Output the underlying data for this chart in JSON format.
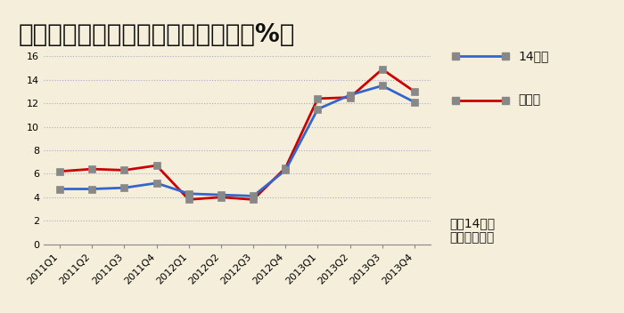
{
  "title": "住宅価格の上昇率　（前年同期比、%）",
  "background_color": "#f5eedb",
  "plot_bg_color": "#f5eedb",
  "x_labels": [
    "2011Q1",
    "2011Q2",
    "2011Q3",
    "2011Q4",
    "2012Q1",
    "2012Q2",
    "2012Q3",
    "2012Q4",
    "2013Q1",
    "2013Q2",
    "2013Q3",
    "2013Q4"
  ],
  "series_14toshi": [
    4.7,
    4.7,
    4.8,
    5.2,
    4.3,
    4.2,
    4.1,
    6.3,
    11.5,
    12.7,
    13.5,
    12.1
  ],
  "series_shuto": [
    6.2,
    6.4,
    6.3,
    6.7,
    3.8,
    4.0,
    3.8,
    6.5,
    12.4,
    12.5,
    14.9,
    13.0
  ],
  "color_14toshi": "#3366cc",
  "color_shuto": "#cc0000",
  "marker_color": "#888888",
  "ylim": [
    0,
    16
  ],
  "yticks": [
    0,
    2,
    4,
    6,
    8,
    10,
    12,
    14,
    16
  ],
  "legend_14toshi": "14都市",
  "legend_shuto": "首都圏",
  "note": "注）14都市\nは首都圏含む",
  "title_fontsize": 20,
  "axis_fontsize": 8,
  "legend_fontsize": 10,
  "note_fontsize": 10
}
